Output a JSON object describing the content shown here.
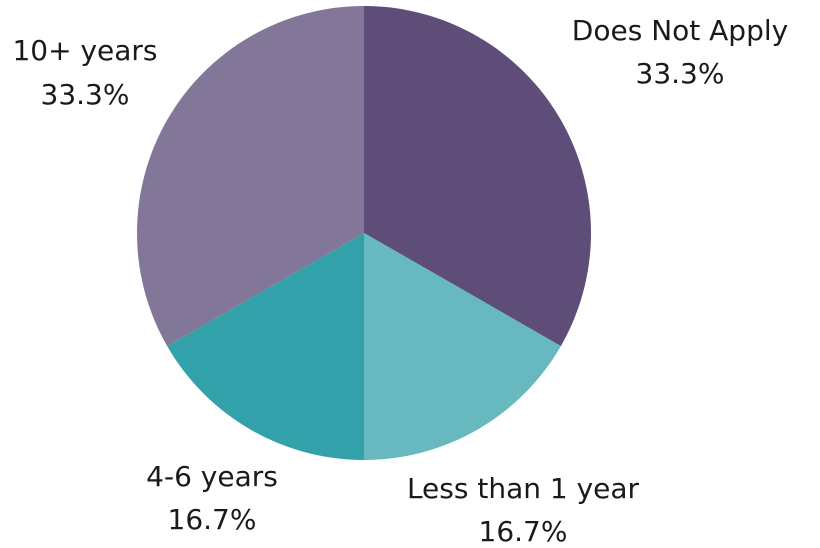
{
  "chart_data": {
    "type": "pie",
    "slices": [
      {
        "label": "Does Not Apply",
        "value": 33.3,
        "percent_label": "33.3%",
        "color": "#5e4d79"
      },
      {
        "label": "Less than 1 year",
        "value": 16.7,
        "percent_label": "16.7%",
        "color": "#67b8bf"
      },
      {
        "label": "4-6 years",
        "value": 16.7,
        "percent_label": "16.7%",
        "color": "#33a1aa"
      },
      {
        "label": "10+ years",
        "value": 33.3,
        "percent_label": "33.3%",
        "color": "#827798"
      }
    ],
    "start_angle_deg": 0,
    "direction": "clockwise"
  }
}
